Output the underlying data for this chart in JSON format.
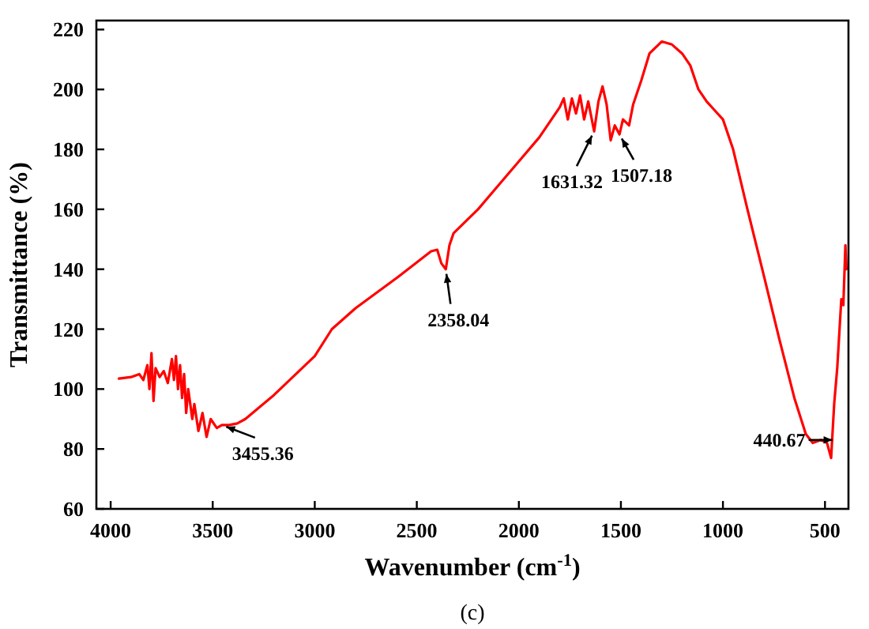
{
  "chart_data": {
    "type": "line",
    "xlabel": "Wavenumber (cm$^{-1}$)",
    "ylabel": "Transmittance (%)",
    "xlim": [
      4070,
      385
    ],
    "xticks": [
      4000,
      3500,
      3000,
      2500,
      2000,
      1500,
      1000,
      500
    ],
    "ylim": [
      60,
      223
    ],
    "yticks": [
      60,
      80,
      100,
      120,
      140,
      160,
      180,
      200,
      220
    ],
    "grid": false,
    "marker": "none",
    "line_style": "solid",
    "series": [
      {
        "color": "#ff0000",
        "x": [
          3960,
          3900,
          3860,
          3840,
          3820,
          3810,
          3800,
          3790,
          3780,
          3760,
          3740,
          3720,
          3700,
          3690,
          3680,
          3670,
          3660,
          3650,
          3640,
          3630,
          3620,
          3600,
          3590,
          3570,
          3550,
          3530,
          3510,
          3480,
          3455,
          3420,
          3380,
          3340,
          3200,
          3000,
          2916,
          2800,
          2600,
          2430,
          2400,
          2380,
          2358,
          2340,
          2320,
          2200,
          2100,
          2000,
          1900,
          1800,
          1780,
          1760,
          1740,
          1720,
          1700,
          1680,
          1660,
          1631,
          1610,
          1590,
          1570,
          1550,
          1530,
          1507,
          1490,
          1460,
          1440,
          1400,
          1360,
          1300,
          1250,
          1200,
          1160,
          1120,
          1080,
          1040,
          1000,
          950,
          880,
          800,
          725,
          650,
          594,
          560,
          520,
          490,
          470,
          455,
          440,
          420,
          410,
          400,
          395
        ],
        "values": [
          103.5,
          104,
          105,
          103,
          108,
          100,
          112,
          96,
          107,
          104,
          106,
          102,
          110,
          103,
          111,
          100,
          108,
          97,
          105,
          92,
          100,
          90,
          95,
          86,
          92,
          84,
          90,
          87,
          88,
          88,
          88.5,
          90,
          98,
          111,
          120,
          127,
          137,
          146,
          146.5,
          142,
          140,
          148,
          152,
          160,
          168,
          176,
          184,
          194,
          197,
          190,
          197,
          192,
          198,
          190,
          196,
          186,
          196,
          201,
          195,
          183,
          188,
          185,
          190,
          188,
          195,
          203,
          212,
          216,
          215,
          212,
          208,
          200,
          196,
          193,
          190,
          180,
          160,
          138,
          117,
          97,
          85,
          82,
          83,
          82,
          77,
          95,
          107,
          130,
          128,
          148,
          140
        ]
      }
    ],
    "annotations": [
      {
        "text": "3455.36",
        "x": 3455.36,
        "y": 88
      },
      {
        "text": "2358.04",
        "x": 2358.04,
        "y": 140
      },
      {
        "text": "1631.32",
        "x": 1631.32,
        "y": 186
      },
      {
        "text": "1507.18",
        "x": 1507.18,
        "y": 185
      },
      {
        "text": "440.67",
        "x": 440.67,
        "y": 83
      },
      "(c)"
    ]
  }
}
